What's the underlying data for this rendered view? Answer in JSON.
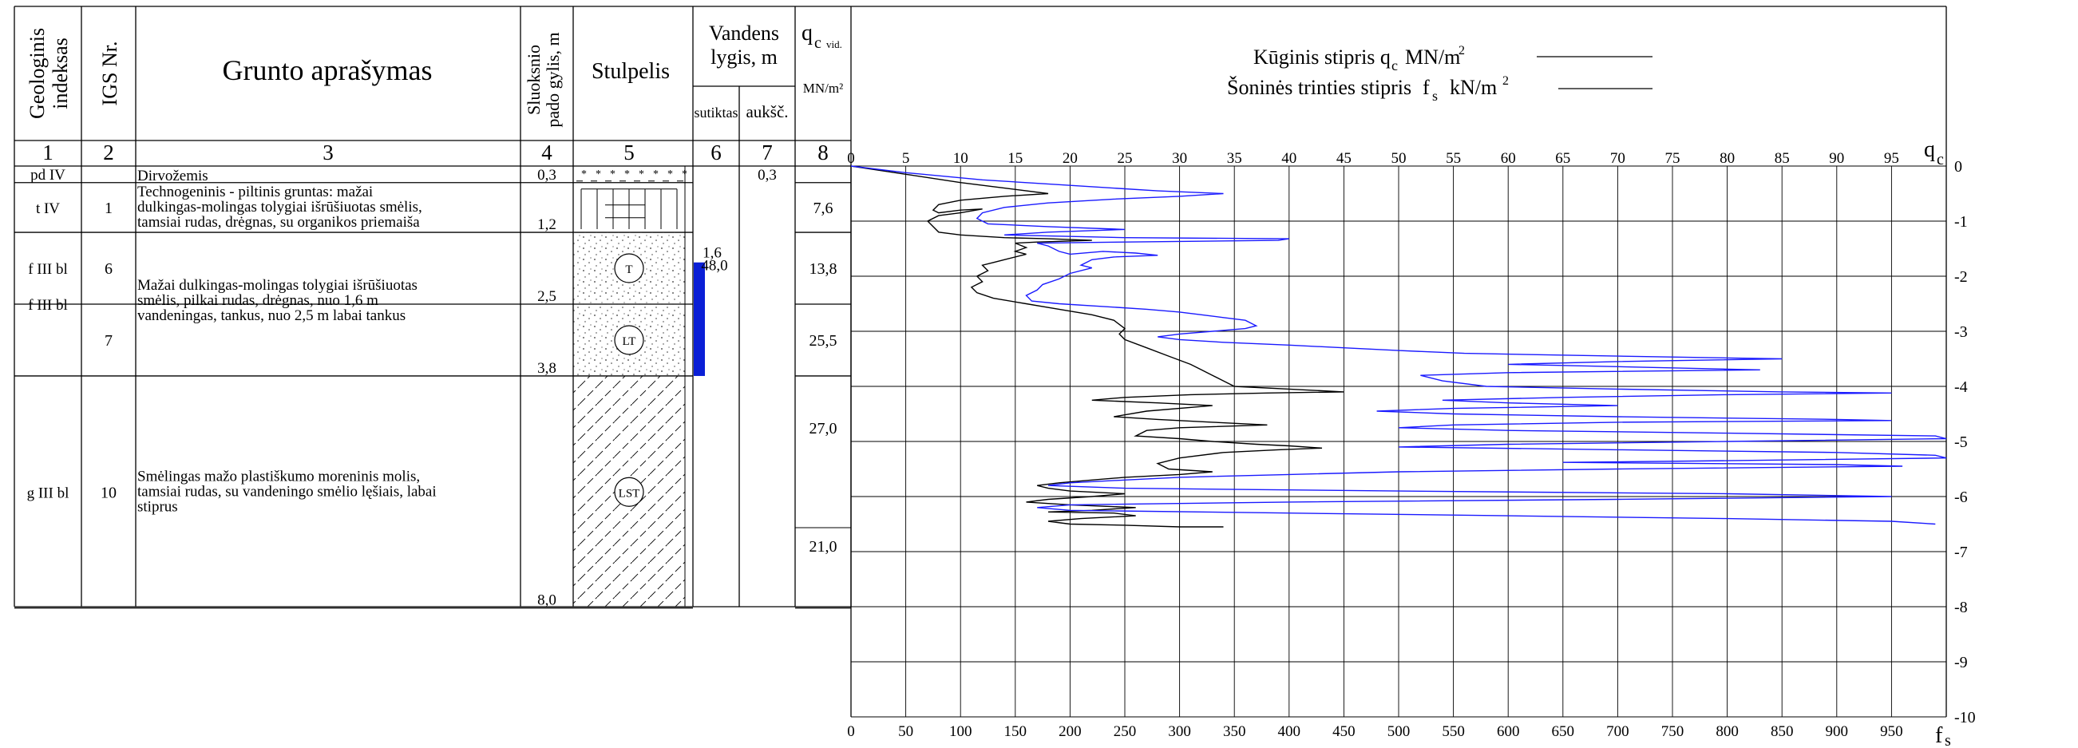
{
  "headers": {
    "col1": [
      "Geologinis",
      "indeksas"
    ],
    "col2": "IGS Nr.",
    "col3": "Grunto aprašymas",
    "col4": [
      "Sluoksnio",
      "pado gylis, m"
    ],
    "col5": "Stulpelis",
    "col6_7": [
      "Vandens",
      "lygis, m"
    ],
    "col6": "sutiktas",
    "col7": "aukšč.",
    "col8_q": "q",
    "col8_c": "c",
    "col8_vid": "vid.",
    "col8_unit": "MN/m²",
    "numbers": [
      "1",
      "2",
      "3",
      "4",
      "5",
      "6",
      "7",
      "8"
    ]
  },
  "legend": {
    "qc_label": "Kūginis stipris",
    "qc_sym": "q",
    "qc_sub": "c",
    "qc_unit": "MN/m",
    "qc_sup": "2",
    "fs_label": "Šoninės trinties stipris",
    "fs_sym": "f",
    "fs_sub": "s",
    "fs_unit": "kN/m",
    "fs_sup": "2",
    "qc_color": "#000000",
    "fs_color": "#1a1aff"
  },
  "layers": [
    {
      "index": "pd IV",
      "igs": "",
      "desc": [
        "Dirvožemis"
      ],
      "depth": "0,3",
      "top": 0,
      "bottom": 0.3,
      "pattern": "soil",
      "water_found": "",
      "water_level": "0,3",
      "qc_avg": ""
    },
    {
      "index": "t IV",
      "igs": "1",
      "desc": [
        "Technogeninis - piltinis gruntas: mažai",
        "dulkingas-molingas tolygiai išrūšiuotas smėlis,",
        "tamsiai rudas, drėgnas, su organikos priemaiša"
      ],
      "depth": "1,2",
      "top": 0.3,
      "bottom": 1.2,
      "pattern": "fill",
      "water_found": "",
      "water_level": "",
      "qc_avg": "7,6"
    },
    {
      "index": "f III bl",
      "igs": "6",
      "desc": [],
      "depth": "2,5",
      "top": 1.2,
      "bottom": 2.5,
      "pattern": "sand",
      "symbol": "T",
      "water_found": "",
      "water_level": "",
      "qc_avg": "13,8"
    },
    {
      "index": "",
      "igs": "7",
      "desc": [],
      "depth": "3,8",
      "top": 2.5,
      "bottom": 3.8,
      "pattern": "sand",
      "symbol": "LT",
      "water_found": "",
      "water_level": "",
      "qc_avg": "25,5"
    },
    {
      "index": "g III bl",
      "igs": "10",
      "desc": [
        "Smėlingas mažo plastiškumo moreninis molis,",
        "tamsiai rudas, su vandeningo smėlio lęšiais, labai",
        "stiprus"
      ],
      "depth": "8,0",
      "top": 3.8,
      "bottom": 8.0,
      "pattern": "clay",
      "symbol": "LST",
      "water_found": "",
      "water_level": "",
      "qc_avg": "27,0"
    }
  ],
  "f_desc": [
    "Mažai dulkingas-molingas tolygiai išrūšiuotas",
    "smėlis, pilkai rudas, drėgnas, nuo 1,6 m",
    "vandeningas, tankus, nuo 2,5 m labai tankus"
  ],
  "f_index": "f III bl",
  "g_extra_qc": "21,0",
  "water": {
    "found": "1,6",
    "level": "48,0",
    "from": 1.6,
    "to": 3.8,
    "color": "#0a1fd6"
  },
  "chart_data": {
    "type": "line",
    "title": "",
    "x_qc": {
      "label": "q",
      "sub": "c",
      "min": 0,
      "max": 100,
      "ticks": [
        0,
        5,
        10,
        15,
        20,
        25,
        30,
        35,
        40,
        45,
        50,
        55,
        60,
        65,
        70,
        75,
        80,
        85,
        90,
        95
      ],
      "tick_labels": [
        "0",
        "5",
        "10",
        "15",
        "20",
        "25",
        "30",
        "35",
        "40",
        "45",
        "50",
        "55",
        "60",
        "65",
        "70",
        "75",
        "80",
        "85",
        "90",
        "95"
      ]
    },
    "x_fs": {
      "label": "f",
      "sub": "s",
      "min": 0,
      "max": 1000,
      "ticks": [
        0,
        50,
        100,
        150,
        200,
        250,
        300,
        350,
        400,
        450,
        500,
        550,
        600,
        650,
        700,
        750,
        800,
        850,
        900,
        950
      ],
      "tick_labels": [
        "0",
        "50",
        "100",
        "150",
        "200",
        "250",
        "300",
        "350",
        "400",
        "450",
        "500",
        "550",
        "600",
        "650",
        "700",
        "750",
        "800",
        "850",
        "900",
        "950"
      ]
    },
    "y": {
      "min": 0,
      "max": -10,
      "ticks": [
        0,
        -1,
        -2,
        -3,
        -4,
        -5,
        -6,
        -7,
        -8,
        -9,
        -10
      ],
      "tick_labels": [
        "0",
        "-1",
        "-2",
        "-3",
        "-4",
        "-5",
        "-6",
        "-7",
        "-8",
        "-9",
        "-10"
      ]
    },
    "series": [
      {
        "key": "qc",
        "axis": "qc",
        "points": [
          [
            0,
            0
          ],
          [
            5,
            -0.15
          ],
          [
            10,
            -0.3
          ],
          [
            14,
            -0.4
          ],
          [
            18,
            -0.5
          ],
          [
            14,
            -0.55
          ],
          [
            10,
            -0.62
          ],
          [
            8,
            -0.7
          ],
          [
            7.5,
            -0.8
          ],
          [
            8,
            -0.85
          ],
          [
            10,
            -0.8
          ],
          [
            12,
            -0.78
          ],
          [
            10,
            -0.85
          ],
          [
            8,
            -0.9
          ],
          [
            7,
            -1.0
          ],
          [
            7.5,
            -1.1
          ],
          [
            8,
            -1.2
          ],
          [
            10,
            -1.25
          ],
          [
            14,
            -1.3
          ],
          [
            18,
            -1.32
          ],
          [
            22,
            -1.35
          ],
          [
            17,
            -1.38
          ],
          [
            15,
            -1.4
          ],
          [
            16,
            -1.48
          ],
          [
            15,
            -1.55
          ],
          [
            16,
            -1.6
          ],
          [
            14,
            -1.7
          ],
          [
            13,
            -1.75
          ],
          [
            12,
            -1.8
          ],
          [
            12.5,
            -1.9
          ],
          [
            11.5,
            -2.0
          ],
          [
            12,
            -2.1
          ],
          [
            11,
            -2.2
          ],
          [
            11.5,
            -2.3
          ],
          [
            13,
            -2.4
          ],
          [
            16,
            -2.5
          ],
          [
            19,
            -2.6
          ],
          [
            22,
            -2.7
          ],
          [
            24,
            -2.8
          ],
          [
            25,
            -2.95
          ],
          [
            24.5,
            -3.05
          ],
          [
            25,
            -3.15
          ],
          [
            27,
            -3.3
          ],
          [
            29,
            -3.45
          ],
          [
            31,
            -3.6
          ],
          [
            32,
            -3.7
          ],
          [
            33,
            -3.8
          ],
          [
            34,
            -3.9
          ],
          [
            35,
            -4.0
          ],
          [
            40,
            -4.05
          ],
          [
            45,
            -4.1
          ],
          [
            38,
            -4.12
          ],
          [
            31,
            -4.15
          ],
          [
            25,
            -4.2
          ],
          [
            22,
            -4.25
          ],
          [
            28,
            -4.3
          ],
          [
            33,
            -4.35
          ],
          [
            27,
            -4.45
          ],
          [
            24,
            -4.55
          ],
          [
            28,
            -4.6
          ],
          [
            33,
            -4.65
          ],
          [
            38,
            -4.7
          ],
          [
            30,
            -4.75
          ],
          [
            27,
            -4.8
          ],
          [
            26,
            -4.9
          ],
          [
            30,
            -4.95
          ],
          [
            33,
            -5.0
          ],
          [
            37,
            -5.05
          ],
          [
            40,
            -5.08
          ],
          [
            43,
            -5.12
          ],
          [
            39,
            -5.15
          ],
          [
            34,
            -5.2
          ],
          [
            30,
            -5.3
          ],
          [
            28,
            -5.4
          ],
          [
            29,
            -5.5
          ],
          [
            33,
            -5.55
          ],
          [
            30,
            -5.6
          ],
          [
            25,
            -5.65
          ],
          [
            22,
            -5.7
          ],
          [
            19,
            -5.75
          ],
          [
            17,
            -5.8
          ],
          [
            18,
            -5.85
          ],
          [
            20,
            -5.9
          ],
          [
            25,
            -5.95
          ],
          [
            22,
            -6.0
          ],
          [
            18,
            -6.05
          ],
          [
            16,
            -6.1
          ],
          [
            20,
            -6.15
          ],
          [
            26,
            -6.2
          ],
          [
            22,
            -6.25
          ],
          [
            18,
            -6.28
          ],
          [
            24,
            -6.3
          ],
          [
            26,
            -6.35
          ],
          [
            21,
            -6.4
          ],
          [
            18,
            -6.45
          ],
          [
            20,
            -6.5
          ],
          [
            25,
            -6.52
          ],
          [
            30,
            -6.55
          ],
          [
            34,
            -6.55
          ]
        ]
      },
      {
        "key": "fs",
        "axis": "fs",
        "points": [
          [
            0,
            0
          ],
          [
            50,
            -0.12
          ],
          [
            120,
            -0.25
          ],
          [
            200,
            -0.35
          ],
          [
            280,
            -0.45
          ],
          [
            340,
            -0.5
          ],
          [
            300,
            -0.55
          ],
          [
            240,
            -0.6
          ],
          [
            180,
            -0.67
          ],
          [
            140,
            -0.75
          ],
          [
            120,
            -0.85
          ],
          [
            115,
            -0.95
          ],
          [
            125,
            -1.05
          ],
          [
            180,
            -1.1
          ],
          [
            250,
            -1.15
          ],
          [
            180,
            -1.2
          ],
          [
            140,
            -1.25
          ],
          [
            250,
            -1.3
          ],
          [
            400,
            -1.32
          ],
          [
            390,
            -1.35
          ],
          [
            250,
            -1.38
          ],
          [
            170,
            -1.4
          ],
          [
            180,
            -1.45
          ],
          [
            190,
            -1.55
          ],
          [
            200,
            -1.6
          ],
          [
            230,
            -1.55
          ],
          [
            260,
            -1.58
          ],
          [
            280,
            -1.62
          ],
          [
            240,
            -1.65
          ],
          [
            220,
            -1.7
          ],
          [
            210,
            -1.8
          ],
          [
            220,
            -1.85
          ],
          [
            200,
            -1.95
          ],
          [
            190,
            -2.05
          ],
          [
            175,
            -2.15
          ],
          [
            170,
            -2.25
          ],
          [
            160,
            -2.35
          ],
          [
            165,
            -2.45
          ],
          [
            190,
            -2.5
          ],
          [
            230,
            -2.55
          ],
          [
            270,
            -2.6
          ],
          [
            300,
            -2.65
          ],
          [
            320,
            -2.7
          ],
          [
            340,
            -2.75
          ],
          [
            360,
            -2.8
          ],
          [
            370,
            -2.9
          ],
          [
            360,
            -2.95
          ],
          [
            330,
            -3.0
          ],
          [
            300,
            -3.05
          ],
          [
            280,
            -3.1
          ],
          [
            300,
            -3.15
          ],
          [
            340,
            -3.2
          ],
          [
            400,
            -3.25
          ],
          [
            450,
            -3.3
          ],
          [
            500,
            -3.35
          ],
          [
            560,
            -3.4
          ],
          [
            700,
            -3.45
          ],
          [
            850,
            -3.5
          ],
          [
            700,
            -3.55
          ],
          [
            600,
            -3.6
          ],
          [
            720,
            -3.65
          ],
          [
            830,
            -3.7
          ],
          [
            600,
            -3.75
          ],
          [
            520,
            -3.8
          ],
          [
            540,
            -3.9
          ],
          [
            580,
            -4.0
          ],
          [
            700,
            -4.05
          ],
          [
            850,
            -4.1
          ],
          [
            950,
            -4.12
          ],
          [
            800,
            -4.15
          ],
          [
            650,
            -4.2
          ],
          [
            540,
            -4.25
          ],
          [
            600,
            -4.3
          ],
          [
            700,
            -4.35
          ],
          [
            550,
            -4.4
          ],
          [
            480,
            -4.45
          ],
          [
            550,
            -4.5
          ],
          [
            700,
            -4.55
          ],
          [
            900,
            -4.6
          ],
          [
            950,
            -4.62
          ],
          [
            700,
            -4.65
          ],
          [
            550,
            -4.7
          ],
          [
            500,
            -4.75
          ],
          [
            600,
            -4.8
          ],
          [
            800,
            -4.85
          ],
          [
            990,
            -4.9
          ],
          [
            1000,
            -4.95
          ],
          [
            800,
            -5.0
          ],
          [
            600,
            -5.05
          ],
          [
            500,
            -5.1
          ],
          [
            700,
            -5.15
          ],
          [
            900,
            -5.2
          ],
          [
            990,
            -5.25
          ],
          [
            1000,
            -5.3
          ],
          [
            800,
            -5.35
          ],
          [
            650,
            -5.38
          ],
          [
            900,
            -5.42
          ],
          [
            960,
            -5.45
          ],
          [
            700,
            -5.5
          ],
          [
            500,
            -5.55
          ],
          [
            400,
            -5.6
          ],
          [
            300,
            -5.65
          ],
          [
            250,
            -5.7
          ],
          [
            200,
            -5.75
          ],
          [
            180,
            -5.8
          ],
          [
            250,
            -5.85
          ],
          [
            500,
            -5.9
          ],
          [
            800,
            -5.95
          ],
          [
            950,
            -6.0
          ],
          [
            700,
            -6.05
          ],
          [
            400,
            -6.1
          ],
          [
            200,
            -6.15
          ],
          [
            170,
            -6.2
          ],
          [
            200,
            -6.25
          ],
          [
            400,
            -6.3
          ],
          [
            600,
            -6.35
          ],
          [
            800,
            -6.4
          ],
          [
            950,
            -6.45
          ],
          [
            990,
            -6.5
          ]
        ]
      }
    ]
  }
}
